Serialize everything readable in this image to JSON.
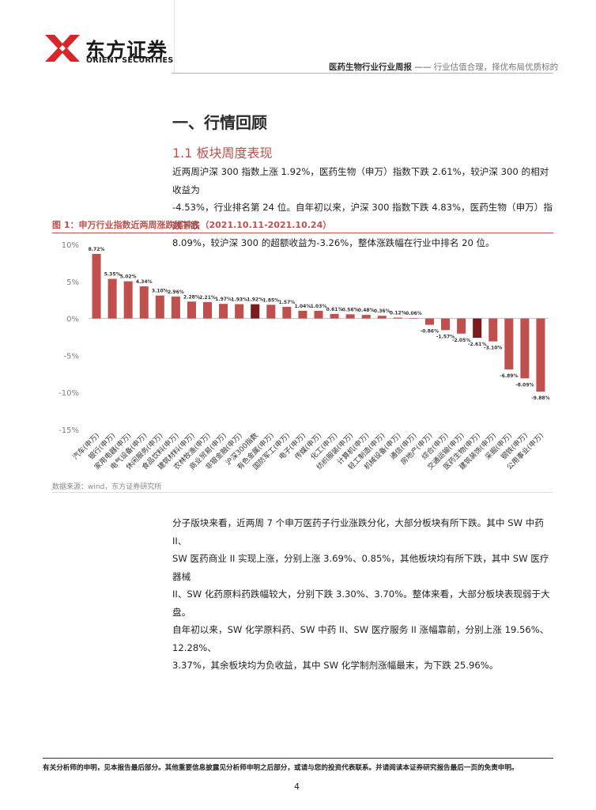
{
  "header": {
    "brand_cn": "东方证券",
    "brand_en": "ORIENT SECURITIES",
    "report_title": "医药生物行业行业周报",
    "separator": " —— ",
    "report_subtitle": "行业估值合理，择优布局优质标的"
  },
  "section": {
    "h1": "一、行情回顾",
    "h2": "1.1  板块周度表现"
  },
  "paragraph1": {
    "line1": "近两周沪深 300 指数上涨 1.92%，医药生物（申万）指数下跌 2.61%，较沪深 300 的相对收益为",
    "line2": "-4.53%，行业排名第 24 位。自年初以来，沪深 300 指数下跌 4.83%，医药生物（申万）指数下跌",
    "line3": "8.09%，较沪深 300 的超额收益为-3.26%，整体涨跌幅在行业中排名 20 位。"
  },
  "figure": {
    "title": "图 1：申万行业指数近两周涨跌幅排名（2021.10.11-2021.10.24）",
    "source": "数据来源：wind，东方证券研究所"
  },
  "chart_data": {
    "type": "bar",
    "title": "",
    "xlabel": "",
    "ylabel": "",
    "ylim": [
      -15,
      10
    ],
    "yticks": [
      "10%",
      "5%",
      "0%",
      "-5%",
      "-10%",
      "-15%"
    ],
    "ytick_values": [
      10,
      5,
      0,
      -5,
      -10,
      -15
    ],
    "categories": [
      "汽车(申万)",
      "银行(申万)",
      "家用电器(申万)",
      "电气设备(申万)",
      "休闲服务(申万)",
      "食品饮料(申万)",
      "建筑材料(申万)",
      "农林牧渔(申万)",
      "商业贸易(申万)",
      "非银金融(申万)",
      "沪深300指数",
      "有色金属(申万)",
      "国防军工(申万)",
      "电子(申万)",
      "传媒(申万)",
      "化工(申万)",
      "纺织服装(申万)",
      "计算机(申万)",
      "轻工制造(申万)",
      "机械设备(申万)",
      "通信(申万)",
      "房地产(申万)",
      "综合(申万)",
      "交通运输(申万)",
      "医药生物(申万)",
      "建筑装饰(申万)",
      "采掘(申万)",
      "钢铁(申万)",
      "公用事业(申万)"
    ],
    "values": [
      8.72,
      5.35,
      5.02,
      4.34,
      3.1,
      2.96,
      2.28,
      2.21,
      1.97,
      1.93,
      1.92,
      1.85,
      1.57,
      1.04,
      1.03,
      0.61,
      0.56,
      0.48,
      0.36,
      0.12,
      0.06,
      -0.86,
      -1.57,
      -2.05,
      -2.61,
      -3.1,
      -6.89,
      -8.09,
      -9.88
    ],
    "value_labels": [
      "8.72%",
      "5.35%",
      "5.02%",
      "4.34%",
      "3.10%",
      "2.96%",
      "2.28%",
      "2.21%",
      "1.97%",
      "1.93%",
      "1.92%",
      "1.85%",
      "1.57%",
      "1.04%",
      "1.03%",
      "0.61%",
      "0.56%",
      "0.48%",
      "0.36%",
      "0.12%",
      "0.06%",
      "-0.86%",
      "-1.57%",
      "-2.05%",
      "-2.61%",
      "-3.10%",
      "-6.89%",
      "-8.09%",
      "-9.88%"
    ],
    "highlight_categories": [
      "沪深300指数",
      "医药生物(申万)"
    ],
    "colors": {
      "bar": "#c0504d",
      "highlight": "#7a1c1c",
      "axis": "#bfbfbf",
      "tick_text": "#7f7f7f"
    },
    "grid": false,
    "legend": "none"
  },
  "paragraph2": {
    "line1": "分子版块来看，近两周 7 个申万医药子行业涨跌分化，大部分板块有所下跌。其中 SW 中药 II、",
    "line2": "SW 医药商业 II 实现上涨，分别上涨 3.69%、0.85%，其他板块均有所下跌，其中 SW 医疗器械",
    "line3": "II、SW 化药原料药跌幅较大，分别下跌 3.30%、3.70%。整体来看，大部分板块表现弱于大盘。",
    "line4": "自年初以来，SW 化学原料药、SW 中药 II、SW 医疗服务 II 涨幅靠前，分别上涨 19.56%、12.28%、",
    "line5": "3.37%，其余板块均为负收益，其中 SW 化学制剂涨幅最末，为下跌 25.96%。"
  },
  "footer": {
    "disclaimer": "有关分析师的申明，见本报告最后部分。其他重要信息披露见分析师申明之后部分，或请与您的投资代表联系。并请阅读本证券研究报告最后一页的免责申明。",
    "page_number": "4"
  }
}
